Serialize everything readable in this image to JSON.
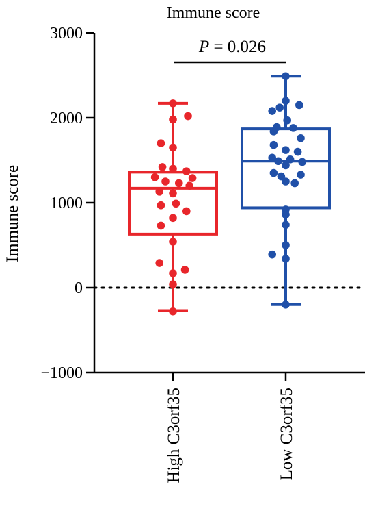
{
  "chart_data": {
    "type": "box",
    "title": "Immune score",
    "ylabel": "Immune score",
    "xlabel": "",
    "ylim": [
      -1000,
      3000
    ],
    "yticks": [
      -1000,
      0,
      1000,
      2000,
      3000
    ],
    "categories": [
      "High C3orf35",
      "Low C3orf35"
    ],
    "reference_line": 0,
    "annotation": {
      "prefix": "P",
      "text": " = 0.026"
    },
    "series": [
      {
        "color": "#e8262b",
        "box": {
          "min": -270,
          "q1": 630,
          "median": 1170,
          "q3": 1360,
          "max": 2170
        },
        "points": [
          [
            0.0,
            2170
          ],
          [
            0.0,
            1980
          ],
          [
            0.5,
            2020
          ],
          [
            0.0,
            1650
          ],
          [
            -0.4,
            1700
          ],
          [
            -0.35,
            1420
          ],
          [
            0.0,
            1400
          ],
          [
            0.45,
            1370
          ],
          [
            -0.6,
            1300
          ],
          [
            0.65,
            1290
          ],
          [
            -0.25,
            1250
          ],
          [
            0.2,
            1230
          ],
          [
            0.55,
            1200
          ],
          [
            -0.45,
            1130
          ],
          [
            0.0,
            1110
          ],
          [
            -0.4,
            970
          ],
          [
            0.1,
            990
          ],
          [
            0.45,
            900
          ],
          [
            0.0,
            820
          ],
          [
            -0.4,
            730
          ],
          [
            0.0,
            540
          ],
          [
            -0.45,
            290
          ],
          [
            0.4,
            210
          ],
          [
            0.0,
            170
          ],
          [
            0.0,
            40
          ],
          [
            0.0,
            -280
          ]
        ]
      },
      {
        "color": "#2050a8",
        "box": {
          "min": -200,
          "q1": 940,
          "median": 1490,
          "q3": 1870,
          "max": 2490
        },
        "points": [
          [
            0.0,
            2490
          ],
          [
            0.0,
            2200
          ],
          [
            0.45,
            2150
          ],
          [
            -0.2,
            2120
          ],
          [
            -0.45,
            2080
          ],
          [
            0.05,
            1970
          ],
          [
            -0.3,
            1890
          ],
          [
            0.25,
            1880
          ],
          [
            -0.4,
            1840
          ],
          [
            0.5,
            1760
          ],
          [
            -0.4,
            1680
          ],
          [
            0.0,
            1620
          ],
          [
            0.4,
            1600
          ],
          [
            -0.45,
            1530
          ],
          [
            0.15,
            1510
          ],
          [
            -0.25,
            1490
          ],
          [
            0.55,
            1480
          ],
          [
            0.0,
            1440
          ],
          [
            -0.4,
            1350
          ],
          [
            0.5,
            1330
          ],
          [
            -0.15,
            1310
          ],
          [
            0.0,
            1250
          ],
          [
            0.3,
            1230
          ],
          [
            0.0,
            920
          ],
          [
            0.0,
            860
          ],
          [
            0.0,
            740
          ],
          [
            0.0,
            500
          ],
          [
            -0.45,
            390
          ],
          [
            0.0,
            340
          ],
          [
            0.0,
            -200
          ]
        ]
      }
    ]
  }
}
